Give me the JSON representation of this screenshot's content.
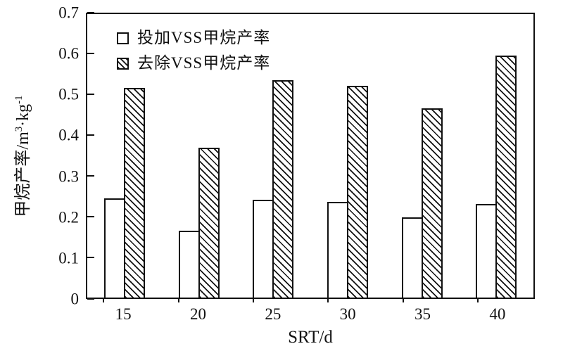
{
  "colors": {
    "ink": "#111111",
    "background": "#ffffff"
  },
  "y_axis": {
    "ticks": [
      "0",
      "0.1",
      "0.2",
      "0.3",
      "0.4",
      "0.5",
      "0.6",
      "0.7"
    ],
    "label_parts": {
      "p0": "甲烷产率/m",
      "sup0": "3",
      "p1": "·kg",
      "sup1": "-1"
    }
  },
  "x_axis": {
    "title": "SRT/d",
    "ticks": [
      "15",
      "20",
      "25",
      "30",
      "35",
      "40"
    ]
  },
  "legend": {
    "items": [
      {
        "label": "投加VSS甲烷产率",
        "marker": "open-square"
      },
      {
        "label": "去除VSS甲烷产率",
        "marker": "hatched-square"
      }
    ]
  },
  "chart_data": {
    "type": "bar",
    "title": "",
    "categories": [
      15,
      20,
      25,
      30,
      35,
      40
    ],
    "series": [
      {
        "name": "投加VSS甲烷产率",
        "style": "open",
        "values": [
          0.243,
          0.164,
          0.24,
          0.234,
          0.197,
          0.229
        ]
      },
      {
        "name": "去除VSS甲烷产率",
        "style": "hatched",
        "values": [
          0.513,
          0.367,
          0.531,
          0.518,
          0.463,
          0.591
        ]
      }
    ],
    "xlabel": "SRT/d",
    "ylabel": "甲烷产率/m³·kg⁻¹",
    "ylim": [
      0,
      0.7
    ],
    "ytick_step": 0.1,
    "grid": false,
    "legend_position": "top-left-inside"
  }
}
